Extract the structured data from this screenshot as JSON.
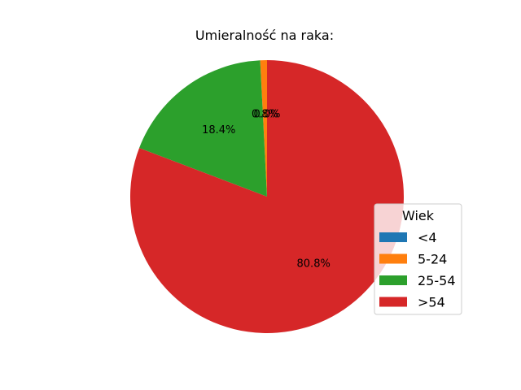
{
  "chart_data": {
    "type": "pie",
    "title": "Umieralność na raka:",
    "categories": [
      "<4",
      "5-24",
      "25-54",
      ">54"
    ],
    "values": [
      0.0,
      0.8,
      18.4,
      80.8
    ],
    "labels": [
      "0.0%",
      "0.8%",
      "18.4%",
      "80.8%"
    ],
    "colors": [
      "#1f77b4",
      "#ff7f0e",
      "#2ca02c",
      "#d62728"
    ],
    "legend": {
      "title": "Wiek",
      "placement": "center-right",
      "entries": [
        "<4",
        "5-24",
        "25-54",
        ">54"
      ]
    },
    "start_angle_deg": 90,
    "direction": "counterclockwise"
  }
}
